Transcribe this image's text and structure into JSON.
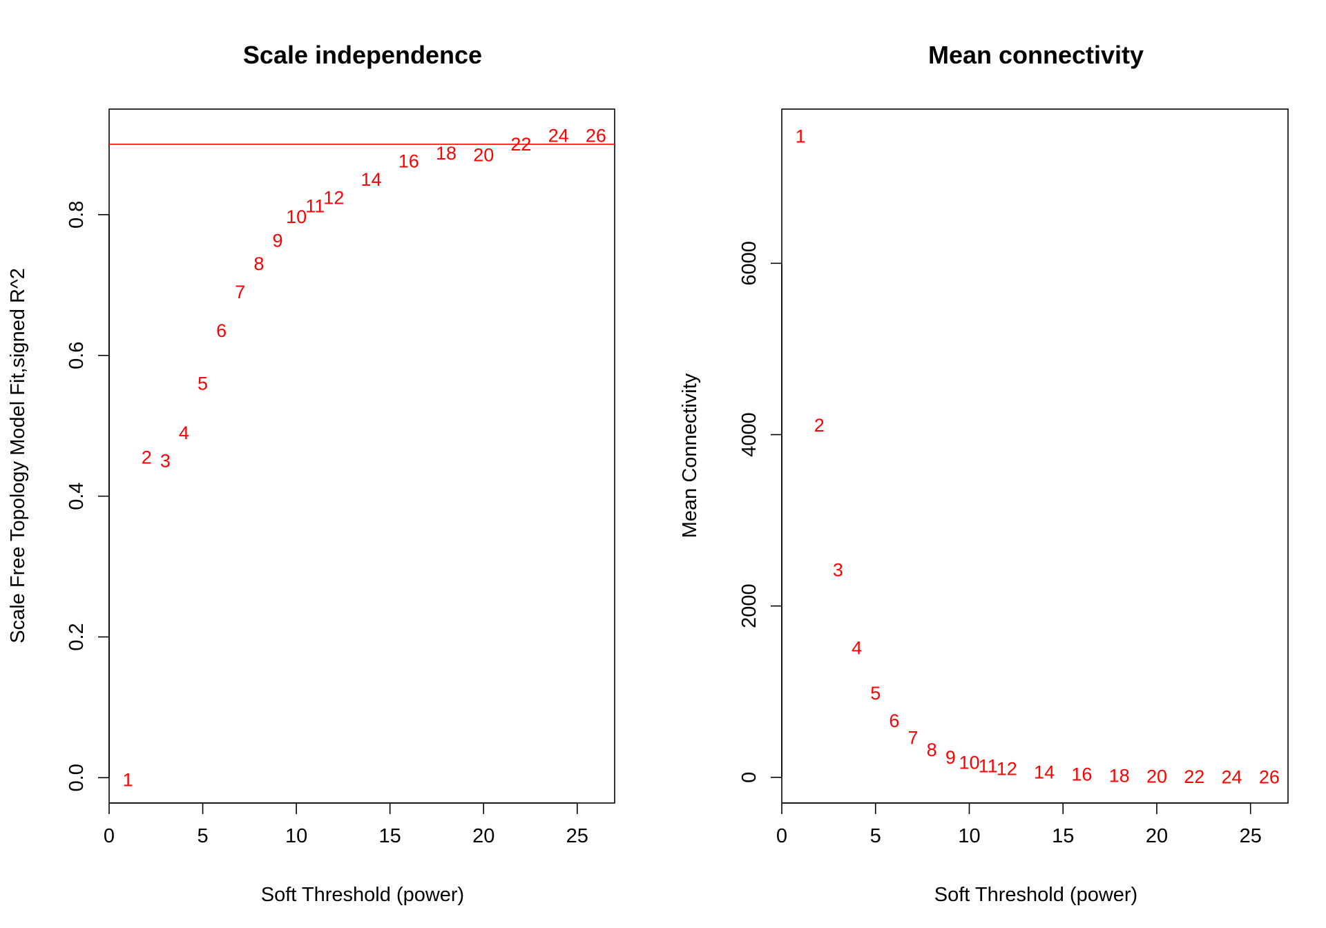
{
  "chart_data": [
    {
      "type": "scatter",
      "title": "Scale independence",
      "xlabel": "Soft Threshold (power)",
      "ylabel": "Scale Free Topology Model Fit,signed R^2",
      "xlim": [
        0,
        27
      ],
      "ylim": [
        -0.036,
        0.95
      ],
      "xticks": [
        0,
        5,
        10,
        15,
        20,
        25
      ],
      "yticks": [
        0.0,
        0.2,
        0.4,
        0.6,
        0.8
      ],
      "ytick_labels": [
        "0.0",
        "0.2",
        "0.4",
        "0.6",
        "0.8"
      ],
      "grid": false,
      "point_color": "#ff0000",
      "hline": {
        "y": 0.9,
        "color": "#ff0000"
      },
      "points": [
        {
          "x": 1,
          "y": -0.003,
          "label": "1"
        },
        {
          "x": 2,
          "y": 0.455,
          "label": "2"
        },
        {
          "x": 3,
          "y": 0.45,
          "label": "3"
        },
        {
          "x": 4,
          "y": 0.49,
          "label": "4"
        },
        {
          "x": 5,
          "y": 0.56,
          "label": "5"
        },
        {
          "x": 6,
          "y": 0.635,
          "label": "6"
        },
        {
          "x": 7,
          "y": 0.69,
          "label": "7"
        },
        {
          "x": 8,
          "y": 0.73,
          "label": "8"
        },
        {
          "x": 9,
          "y": 0.763,
          "label": "9"
        },
        {
          "x": 10,
          "y": 0.797,
          "label": "10"
        },
        {
          "x": 11,
          "y": 0.812,
          "label": "11"
        },
        {
          "x": 12,
          "y": 0.824,
          "label": "12"
        },
        {
          "x": 14,
          "y": 0.85,
          "label": "14"
        },
        {
          "x": 16,
          "y": 0.876,
          "label": "16"
        },
        {
          "x": 18,
          "y": 0.887,
          "label": "18"
        },
        {
          "x": 20,
          "y": 0.885,
          "label": "20"
        },
        {
          "x": 22,
          "y": 0.9,
          "label": "22"
        },
        {
          "x": 24,
          "y": 0.912,
          "label": "24"
        },
        {
          "x": 26,
          "y": 0.912,
          "label": "26"
        }
      ]
    },
    {
      "type": "scatter",
      "title": "Mean connectivity",
      "xlabel": "Soft Threshold (power)",
      "ylabel": "Mean Connectivity",
      "xlim": [
        0,
        27
      ],
      "ylim": [
        -300,
        7800
      ],
      "xticks": [
        0,
        5,
        10,
        15,
        20,
        25
      ],
      "yticks": [
        0,
        2000,
        4000,
        6000
      ],
      "ytick_labels": [
        "0",
        "2000",
        "4000",
        "6000"
      ],
      "grid": false,
      "point_color": "#ff0000",
      "points": [
        {
          "x": 1,
          "y": 7480,
          "label": "1"
        },
        {
          "x": 2,
          "y": 4110,
          "label": "2"
        },
        {
          "x": 3,
          "y": 2420,
          "label": "3"
        },
        {
          "x": 4,
          "y": 1510,
          "label": "4"
        },
        {
          "x": 5,
          "y": 980,
          "label": "5"
        },
        {
          "x": 6,
          "y": 660,
          "label": "6"
        },
        {
          "x": 7,
          "y": 460,
          "label": "7"
        },
        {
          "x": 8,
          "y": 320,
          "label": "8"
        },
        {
          "x": 9,
          "y": 230,
          "label": "9"
        },
        {
          "x": 10,
          "y": 170,
          "label": "10"
        },
        {
          "x": 11,
          "y": 130,
          "label": "11"
        },
        {
          "x": 12,
          "y": 100,
          "label": "12"
        },
        {
          "x": 14,
          "y": 60,
          "label": "14"
        },
        {
          "x": 16,
          "y": 35,
          "label": "16"
        },
        {
          "x": 18,
          "y": 20,
          "label": "18"
        },
        {
          "x": 20,
          "y": 10,
          "label": "20"
        },
        {
          "x": 22,
          "y": 5,
          "label": "22"
        },
        {
          "x": 24,
          "y": 3,
          "label": "24"
        },
        {
          "x": 26,
          "y": 2,
          "label": "26"
        }
      ]
    }
  ]
}
